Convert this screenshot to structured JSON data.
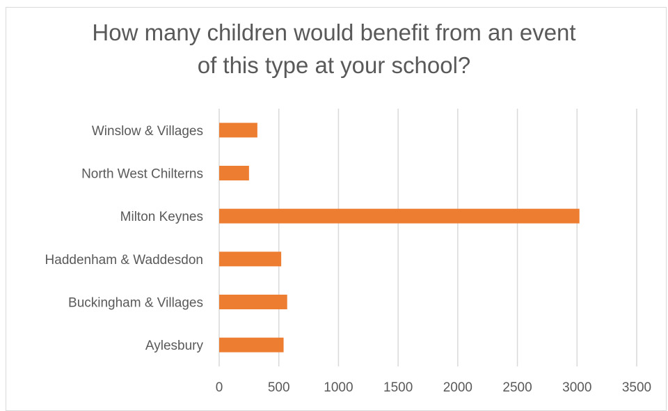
{
  "chart_data": {
    "type": "bar",
    "orientation": "horizontal",
    "title_lines": [
      "How many children would benefit from an event",
      "of this type at your school?"
    ],
    "categories": [
      "Winslow & Villages",
      "North West Chilterns",
      "Milton Keynes",
      "Haddenham & Waddesdon",
      "Buckingham & Villages",
      "Aylesbury"
    ],
    "values": [
      320,
      250,
      3020,
      520,
      570,
      540
    ],
    "xlim": [
      0,
      3500
    ],
    "xticks": [
      "0",
      "500",
      "1000",
      "1500",
      "2000",
      "2500",
      "3000",
      "3500"
    ],
    "xlabel": "",
    "ylabel": "",
    "grid": "vertical",
    "legend": "none",
    "bar_color": "#ED7D31",
    "grid_color": "#D9D9D9"
  }
}
